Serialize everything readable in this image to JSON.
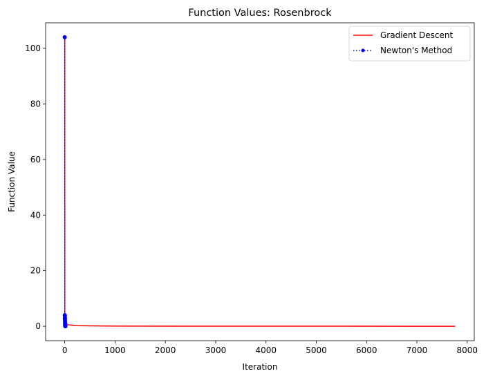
{
  "chart_data": {
    "type": "line",
    "title": "Function Values: Rosenbrock",
    "xlabel": "Iteration",
    "ylabel": "Function Value",
    "xlim": [
      -380,
      8140
    ],
    "ylim": [
      -5.2,
      109.2
    ],
    "x_ticks": [
      0,
      1000,
      2000,
      3000,
      4000,
      5000,
      6000,
      7000,
      8000
    ],
    "y_ticks": [
      0,
      20,
      40,
      60,
      80,
      100
    ],
    "grid": false,
    "legend_position": "top-right",
    "series": [
      {
        "name": "Gradient Descent",
        "color": "#ff0000",
        "line_style": "solid",
        "marker": "none",
        "x": [
          0,
          1,
          2,
          3,
          5,
          10,
          50,
          200,
          1000,
          3000,
          5000,
          7000,
          7760
        ],
        "values": [
          104,
          4.0,
          3.5,
          3.2,
          2.6,
          1.8,
          0.6,
          0.2,
          0.06,
          0.02,
          0.01,
          0.005,
          0.003
        ]
      },
      {
        "name": "Newton's Method",
        "color": "#0000ff",
        "line_style": "dotted",
        "marker": "circle",
        "x": [
          0,
          1,
          2,
          3,
          4,
          5,
          6,
          7,
          8,
          9,
          10,
          11,
          12,
          13
        ],
        "values": [
          104,
          4.0,
          3.8,
          3.0,
          2.5,
          1.9,
          1.2,
          0.8,
          0.4,
          0.2,
          0.05,
          0.01,
          0.001,
          0.0
        ]
      }
    ]
  }
}
